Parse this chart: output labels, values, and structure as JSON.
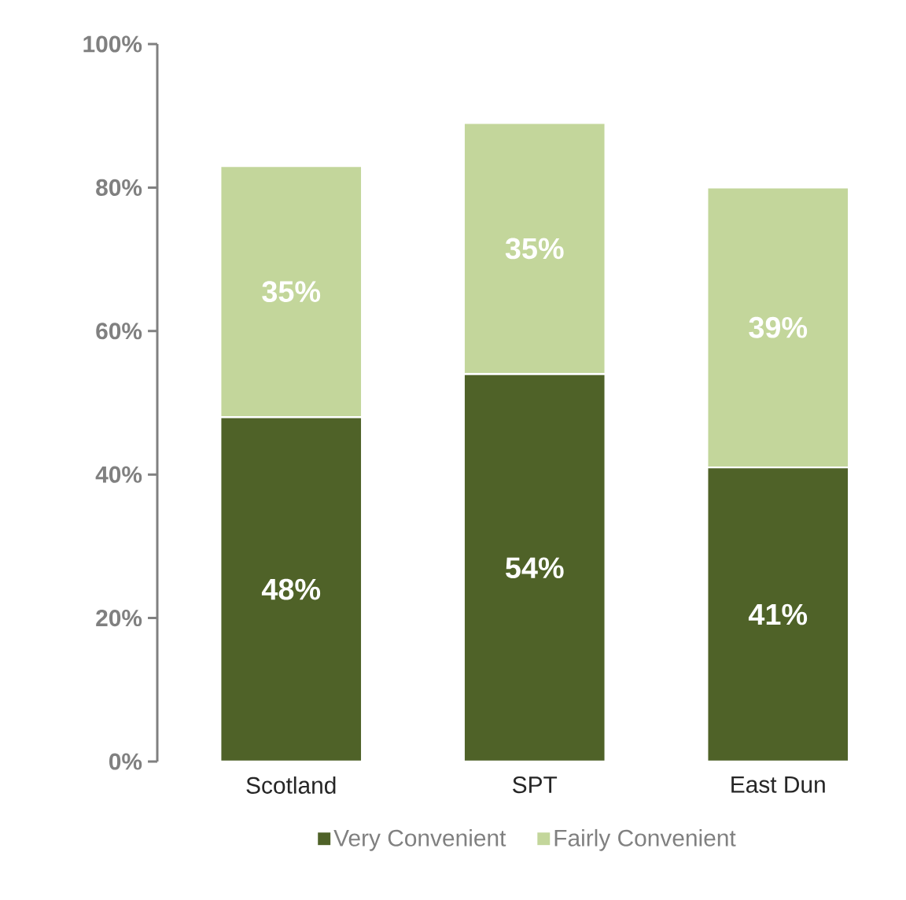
{
  "chart_data": {
    "type": "bar",
    "stacked": true,
    "categories": [
      "Scotland",
      "SPT",
      "East Dun"
    ],
    "series": [
      {
        "name": "Very Convenient",
        "color": "#4f6228",
        "values": [
          48,
          54,
          41
        ],
        "value_labels": [
          "48%",
          "54%",
          "41%"
        ]
      },
      {
        "name": "Fairly Convenient",
        "color": "#c3d69b",
        "values": [
          35,
          35,
          39
        ],
        "value_labels": [
          "35%",
          "35%",
          "39%"
        ]
      }
    ],
    "ylim": [
      0,
      100
    ],
    "yticks": [
      {
        "value": 0,
        "label": "0%"
      },
      {
        "value": 20,
        "label": "20%"
      },
      {
        "value": 40,
        "label": "40%"
      },
      {
        "value": 60,
        "label": "60%"
      },
      {
        "value": 80,
        "label": "80%"
      },
      {
        "value": 100,
        "label": "100%"
      }
    ],
    "grid": false,
    "legend": "bottom"
  }
}
